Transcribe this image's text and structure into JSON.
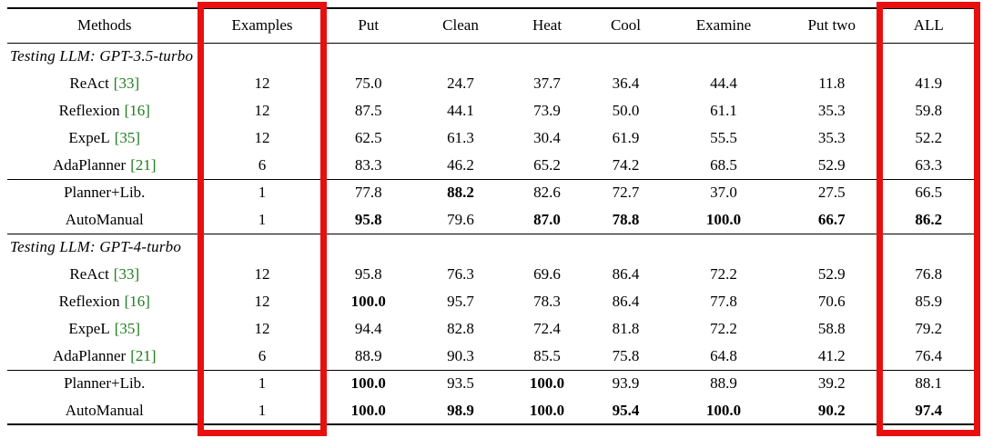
{
  "table": {
    "columns": [
      {
        "label": "Methods",
        "highlighted": false
      },
      {
        "label": "Examples",
        "highlighted": true
      },
      {
        "label": "Put",
        "highlighted": false
      },
      {
        "label": "Clean",
        "highlighted": false
      },
      {
        "label": "Heat",
        "highlighted": false
      },
      {
        "label": "Cool",
        "highlighted": false
      },
      {
        "label": "Examine",
        "highlighted": false
      },
      {
        "label": "Put two",
        "highlighted": false
      },
      {
        "label": "ALL",
        "highlighted": true
      }
    ],
    "sections": [
      {
        "title": "Testing LLM: GPT-3.5-turbo",
        "baseline_rows": [
          {
            "method": "ReAct",
            "cite": "[33]",
            "examples": "12",
            "values": [
              "75.0",
              "24.7",
              "37.7",
              "36.4",
              "44.4",
              "11.8",
              "41.9"
            ],
            "bold": []
          },
          {
            "method": "Reflexion",
            "cite": "[16]",
            "examples": "12",
            "values": [
              "87.5",
              "44.1",
              "73.9",
              "50.0",
              "61.1",
              "35.3",
              "59.8"
            ],
            "bold": []
          },
          {
            "method": "ExpeL",
            "cite": "[35]",
            "examples": "12",
            "values": [
              "62.5",
              "61.3",
              "30.4",
              "61.9",
              "55.5",
              "35.3",
              "52.2"
            ],
            "bold": []
          },
          {
            "method": "AdaPlanner",
            "cite": "[21]",
            "examples": "6",
            "values": [
              "83.3",
              "46.2",
              "65.2",
              "74.2",
              "68.5",
              "52.9",
              "63.3"
            ],
            "bold": []
          }
        ],
        "ours_rows": [
          {
            "method": "Planner+Lib.",
            "cite": "",
            "examples": "1",
            "values": [
              "77.8",
              "88.2",
              "82.6",
              "72.7",
              "37.0",
              "27.5",
              "66.5"
            ],
            "bold": [
              1
            ]
          },
          {
            "method": "AutoManual",
            "cite": "",
            "examples": "1",
            "values": [
              "95.8",
              "79.6",
              "87.0",
              "78.8",
              "100.0",
              "66.7",
              "86.2"
            ],
            "bold": [
              0,
              2,
              3,
              4,
              5,
              6
            ]
          }
        ]
      },
      {
        "title": "Testing LLM: GPT-4-turbo",
        "baseline_rows": [
          {
            "method": "ReAct",
            "cite": "[33]",
            "examples": "12",
            "values": [
              "95.8",
              "76.3",
              "69.6",
              "86.4",
              "72.2",
              "52.9",
              "76.8"
            ],
            "bold": []
          },
          {
            "method": "Reflexion",
            "cite": "[16]",
            "examples": "12",
            "values": [
              "100.0",
              "95.7",
              "78.3",
              "86.4",
              "77.8",
              "70.6",
              "85.9"
            ],
            "bold": [
              0
            ]
          },
          {
            "method": "ExpeL",
            "cite": "[35]",
            "examples": "12",
            "values": [
              "94.4",
              "82.8",
              "72.4",
              "81.8",
              "72.2",
              "58.8",
              "79.2"
            ],
            "bold": []
          },
          {
            "method": "AdaPlanner",
            "cite": "[21]",
            "examples": "6",
            "values": [
              "88.9",
              "90.3",
              "85.5",
              "75.8",
              "64.8",
              "41.2",
              "76.4"
            ],
            "bold": []
          }
        ],
        "ours_rows": [
          {
            "method": "Planner+Lib.",
            "cite": "",
            "examples": "1",
            "values": [
              "100.0",
              "93.5",
              "100.0",
              "93.9",
              "88.9",
              "39.2",
              "88.1"
            ],
            "bold": [
              0,
              2
            ]
          },
          {
            "method": "AutoManual",
            "cite": "",
            "examples": "1",
            "values": [
              "100.0",
              "98.9",
              "100.0",
              "95.4",
              "100.0",
              "90.2",
              "97.4"
            ],
            "bold": [
              0,
              1,
              2,
              3,
              4,
              5,
              6
            ]
          }
        ]
      }
    ]
  },
  "colors": {
    "citation": "#1c7c1c",
    "highlight_box": "#e80f0f",
    "rule": "#000000",
    "text": "#000000"
  }
}
